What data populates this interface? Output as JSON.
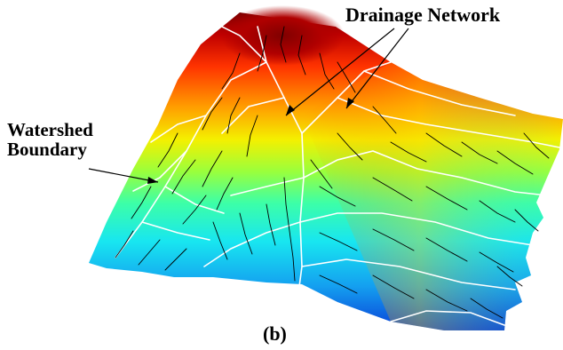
{
  "annotations": {
    "drainage_network": "Drainage Network",
    "watershed_boundary_line1": "Watershed",
    "watershed_boundary_line2": "Boundary"
  },
  "panel_label": "(b)",
  "colors": {
    "peak": "#8b0000",
    "high": "#ff3300",
    "mid_high": "#ffd000",
    "mid": "#9aff3c",
    "low": "#16e0f0",
    "lowest": "#0a40d8",
    "drainage": "#000000",
    "watershed": "#ffffff"
  }
}
